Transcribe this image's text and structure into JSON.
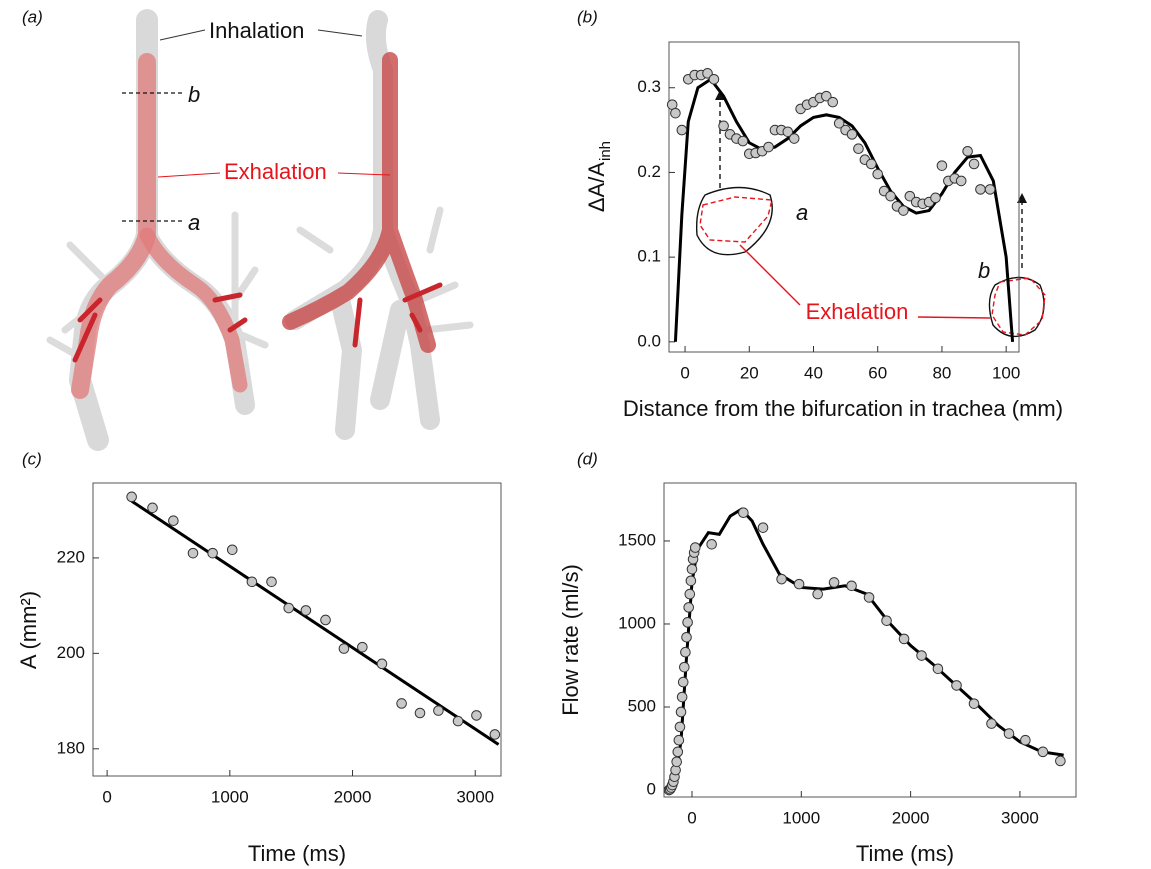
{
  "panel_a": {
    "panel_label": "(a)",
    "inhalation": "Inhalation",
    "exhalation": "Exhalation",
    "cut_b": "b",
    "cut_a": "a"
  },
  "chart_data": [
    {
      "type": "scatter",
      "panel_label": "(b)",
      "xlabel": "Distance from the bifurcation in trachea (mm)",
      "ylabel": "ΔA/A",
      "ylabel_sub": "inh",
      "annotations": {
        "outline_a": "a",
        "outline_b": "b",
        "exhalation": "Exhalation"
      },
      "xlim": [
        -5,
        104
      ],
      "ylim": [
        -0.012,
        0.354
      ],
      "xticks": [
        0,
        20,
        40,
        60,
        80,
        100
      ],
      "yticks": [
        {
          "value": 0,
          "label": "0.0"
        },
        0.1,
        0.2,
        0.3
      ],
      "series": [
        {
          "kind": "points",
          "color": "#c8c8c8",
          "x": [
            -4,
            -3,
            -1,
            1,
            3,
            5,
            7,
            9,
            12,
            14,
            16,
            18,
            20,
            22,
            24,
            26,
            28,
            30,
            32,
            34,
            36,
            38,
            40,
            42,
            44,
            46,
            48,
            50,
            52,
            54,
            56,
            58,
            60,
            62,
            64,
            66,
            68,
            70,
            72,
            74,
            76,
            78,
            80,
            82,
            84,
            86,
            88,
            90,
            92,
            95
          ],
          "values": [
            0.28,
            0.27,
            0.25,
            0.31,
            0.315,
            0.315,
            0.317,
            0.31,
            0.255,
            0.245,
            0.24,
            0.237,
            0.222,
            0.223,
            0.225,
            0.23,
            0.25,
            0.25,
            0.248,
            0.24,
            0.275,
            0.28,
            0.283,
            0.288,
            0.29,
            0.283,
            0.258,
            0.25,
            0.245,
            0.228,
            0.215,
            0.21,
            0.198,
            0.178,
            0.172,
            0.16,
            0.155,
            0.172,
            0.165,
            0.163,
            0.165,
            0.17,
            0.208,
            0.19,
            0.193,
            0.19,
            0.225,
            0.21,
            0.18,
            0.18
          ]
        },
        {
          "kind": "line",
          "color": "#000000",
          "x": [
            -3,
            -1,
            1,
            4,
            8,
            12,
            16,
            20,
            24,
            28,
            32,
            36,
            40,
            44,
            48,
            52,
            56,
            60,
            64,
            68,
            72,
            76,
            80,
            84,
            88,
            92,
            96,
            100,
            102
          ],
          "values": [
            0,
            0.15,
            0.26,
            0.3,
            0.31,
            0.29,
            0.26,
            0.235,
            0.227,
            0.23,
            0.24,
            0.255,
            0.265,
            0.268,
            0.265,
            0.255,
            0.235,
            0.205,
            0.178,
            0.16,
            0.152,
            0.155,
            0.175,
            0.2,
            0.218,
            0.22,
            0.19,
            0.1,
            0
          ]
        }
      ]
    },
    {
      "type": "scatter",
      "panel_label": "(c)",
      "xlabel": "Time (ms)",
      "ylabel": "A (mm²)",
      "xlim": [
        -115,
        3210
      ],
      "ylim": [
        174.3,
        235.7
      ],
      "xticks": [
        0,
        1000,
        2000,
        3000
      ],
      "yticks": [
        180,
        200,
        220
      ],
      "series": [
        {
          "kind": "points",
          "color": "#c8c8c8",
          "x": [
            200,
            370,
            540,
            700,
            860,
            1020,
            1180,
            1340,
            1480,
            1620,
            1780,
            1930,
            2080,
            2240,
            2400,
            2550,
            2700,
            2860,
            3010,
            3160
          ],
          "values": [
            232.8,
            230.5,
            227.8,
            221,
            221,
            221.7,
            215,
            215,
            209.5,
            209,
            207,
            201,
            201.3,
            197.8,
            189.5,
            187.5,
            188,
            185.8,
            187,
            183
          ]
        },
        {
          "kind": "line",
          "color": "#000000",
          "x": [
            200,
            3190
          ],
          "values": [
            231.9,
            180.9
          ]
        }
      ]
    },
    {
      "type": "scatter",
      "panel_label": "(d)",
      "xlabel": "Time (ms)",
      "ylabel": "Flow rate (ml/s)",
      "xlim": [
        -256,
        3513
      ],
      "ylim": [
        -42,
        1849
      ],
      "xticks": [
        0,
        1000,
        2000,
        3000
      ],
      "yticks": [
        0,
        500,
        1000,
        1500
      ],
      "series": [
        {
          "kind": "points",
          "color": "#c8c8c8",
          "x": [
            -210,
            -200,
            -190,
            -180,
            -170,
            -160,
            -150,
            -140,
            -130,
            -120,
            -110,
            -100,
            -90,
            -80,
            -70,
            -60,
            -50,
            -40,
            -30,
            -20,
            -10,
            0,
            10,
            20,
            30,
            180,
            470,
            650,
            820,
            980,
            1150,
            1300,
            1460,
            1620,
            1780,
            1940,
            2100,
            2250,
            2420,
            2580,
            2740,
            2900,
            3050,
            3210,
            3370
          ],
          "values": [
            0,
            5,
            15,
            30,
            50,
            80,
            120,
            170,
            230,
            300,
            380,
            470,
            560,
            650,
            740,
            830,
            920,
            1010,
            1100,
            1180,
            1260,
            1330,
            1390,
            1430,
            1460,
            1480,
            1670,
            1580,
            1270,
            1240,
            1180,
            1250,
            1230,
            1160,
            1020,
            910,
            810,
            730,
            630,
            520,
            400,
            340,
            300,
            230,
            175
          ]
        },
        {
          "kind": "line",
          "color": "#000000",
          "x": [
            -220,
            -150,
            -100,
            -50,
            0,
            50,
            150,
            250,
            350,
            450,
            550,
            650,
            800,
            1000,
            1200,
            1400,
            1600,
            1800,
            2000,
            2200,
            2400,
            2600,
            2800,
            3000,
            3200,
            3400
          ],
          "values": [
            0,
            60,
            300,
            800,
            1250,
            1450,
            1550,
            1540,
            1650,
            1690,
            1620,
            1480,
            1300,
            1220,
            1210,
            1230,
            1180,
            1010,
            870,
            760,
            640,
            520,
            390,
            290,
            230,
            210
          ]
        }
      ]
    }
  ]
}
